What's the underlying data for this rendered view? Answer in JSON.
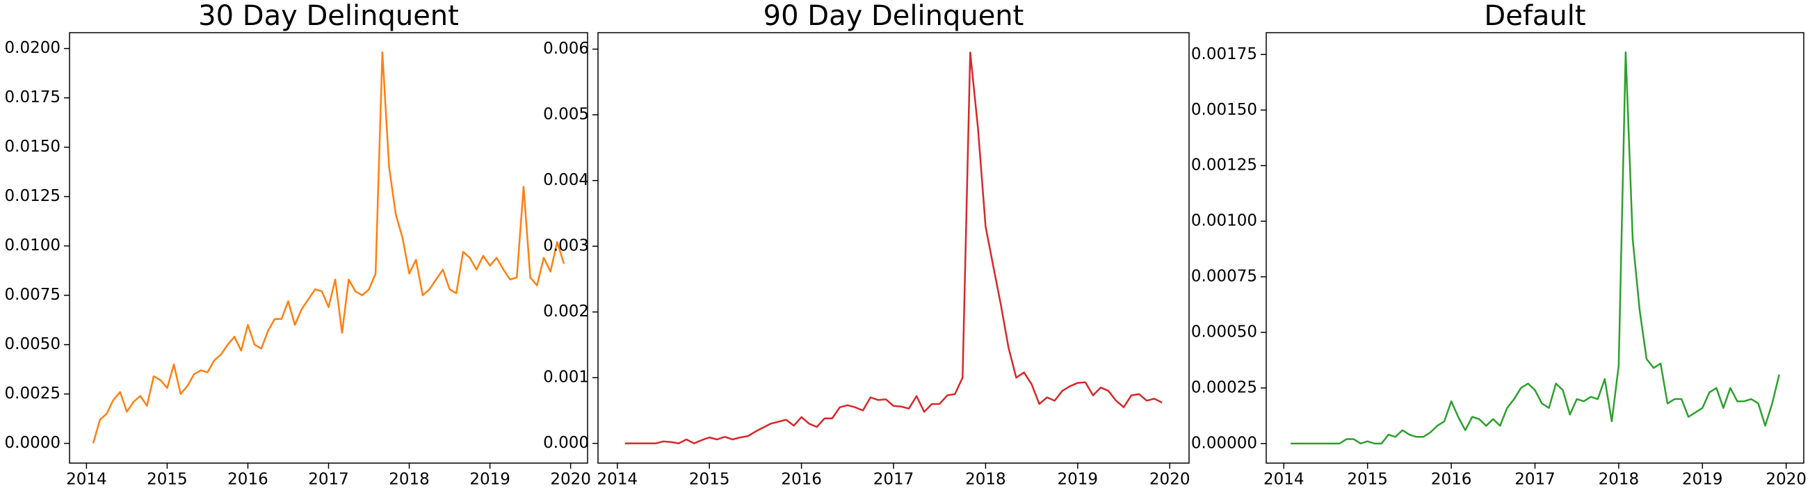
{
  "chart_data": [
    {
      "type": "line",
      "title": "30 Day Delinquent",
      "color": "#ff7f0e",
      "x": [
        2014.083,
        2014.167,
        2014.25,
        2014.333,
        2014.417,
        2014.5,
        2014.583,
        2014.667,
        2014.75,
        2014.833,
        2014.917,
        2015.0,
        2015.083,
        2015.167,
        2015.25,
        2015.333,
        2015.417,
        2015.5,
        2015.583,
        2015.667,
        2015.75,
        2015.833,
        2015.917,
        2016.0,
        2016.083,
        2016.167,
        2016.25,
        2016.333,
        2016.417,
        2016.5,
        2016.583,
        2016.667,
        2016.75,
        2016.833,
        2016.917,
        2017.0,
        2017.083,
        2017.167,
        2017.25,
        2017.333,
        2017.417,
        2017.5,
        2017.583,
        2017.667,
        2017.75,
        2017.833,
        2017.917,
        2018.0,
        2018.083,
        2018.167,
        2018.25,
        2018.333,
        2018.417,
        2018.5,
        2018.583,
        2018.667,
        2018.75,
        2018.833,
        2018.917,
        2019.0,
        2019.083,
        2019.167,
        2019.25,
        2019.333,
        2019.417,
        2019.5,
        2019.583,
        2019.667,
        2019.75,
        2019.833,
        2019.917
      ],
      "values": [
        0,
        0.0012,
        0.0015,
        0.0022,
        0.0026,
        0.0016,
        0.0021,
        0.0024,
        0.0019,
        0.0034,
        0.0032,
        0.0028,
        0.004,
        0.0025,
        0.0029,
        0.0035,
        0.0037,
        0.0036,
        0.0042,
        0.0045,
        0.005,
        0.0054,
        0.0047,
        0.006,
        0.005,
        0.0048,
        0.0057,
        0.0063,
        0.0063,
        0.0072,
        0.006,
        0.0068,
        0.0073,
        0.0078,
        0.0077,
        0.0069,
        0.0083,
        0.0056,
        0.0083,
        0.0077,
        0.0075,
        0.0078,
        0.0086,
        0.0198,
        0.014,
        0.0116,
        0.0104,
        0.0086,
        0.0093,
        0.0075,
        0.0078,
        0.0083,
        0.0088,
        0.0078,
        0.0076,
        0.0097,
        0.0094,
        0.0088,
        0.0095,
        0.009,
        0.0094,
        0.0088,
        0.0083,
        0.0084,
        0.013,
        0.0084,
        0.008,
        0.0094,
        0.0087,
        0.0102,
        0.0091
      ],
      "xlim": [
        2013.79,
        2020.21
      ],
      "xticks": [
        2014,
        2015,
        2016,
        2017,
        2018,
        2019,
        2020
      ],
      "ylim": [
        -0.001,
        0.0208
      ],
      "yticks": [
        {
          "value": 0,
          "label": "0.0000"
        },
        {
          "value": 0.0025,
          "label": "0.0025"
        },
        {
          "value": 0.005,
          "label": "0.0050"
        },
        {
          "value": 0.0075,
          "label": "0.0075"
        },
        {
          "value": 0.01,
          "label": "0.0100"
        },
        {
          "value": 0.0125,
          "label": "0.0125"
        },
        {
          "value": 0.015,
          "label": "0.0150"
        },
        {
          "value": 0.0175,
          "label": "0.0175"
        },
        {
          "value": 0.02,
          "label": "0.0200"
        }
      ]
    },
    {
      "type": "line",
      "title": "90 Day Delinquent",
      "color": "#d62728",
      "x": [
        2014.083,
        2014.167,
        2014.25,
        2014.333,
        2014.417,
        2014.5,
        2014.583,
        2014.667,
        2014.75,
        2014.833,
        2014.917,
        2015.0,
        2015.083,
        2015.167,
        2015.25,
        2015.333,
        2015.417,
        2015.5,
        2015.583,
        2015.667,
        2015.75,
        2015.833,
        2015.917,
        2016.0,
        2016.083,
        2016.167,
        2016.25,
        2016.333,
        2016.417,
        2016.5,
        2016.583,
        2016.667,
        2016.75,
        2016.833,
        2016.917,
        2017.0,
        2017.083,
        2017.167,
        2017.25,
        2017.333,
        2017.417,
        2017.5,
        2017.583,
        2017.667,
        2017.75,
        2017.833,
        2017.917,
        2018.0,
        2018.083,
        2018.167,
        2018.25,
        2018.333,
        2018.417,
        2018.5,
        2018.583,
        2018.667,
        2018.75,
        2018.833,
        2018.917,
        2019.0,
        2019.083,
        2019.167,
        2019.25,
        2019.333,
        2019.417,
        2019.5,
        2019.583,
        2019.667,
        2019.75,
        2019.833,
        2019.917
      ],
      "values": [
        0,
        0,
        0,
        0,
        0,
        3e-05,
        2e-05,
        0,
        6e-05,
        0,
        5e-05,
        9e-05,
        6e-05,
        0.0001,
        6e-05,
        9e-05,
        0.00011,
        0.00018,
        0.00024,
        0.0003,
        0.00033,
        0.00036,
        0.00027,
        0.0004,
        0.0003,
        0.00025,
        0.00038,
        0.00038,
        0.00055,
        0.00058,
        0.00055,
        0.0005,
        0.0007,
        0.00066,
        0.00067,
        0.00057,
        0.00056,
        0.00053,
        0.00072,
        0.00048,
        0.0006,
        0.0006,
        0.00073,
        0.00075,
        0.001,
        0.00595,
        0.0048,
        0.0033,
        0.0027,
        0.0021,
        0.00145,
        0.001,
        0.00108,
        0.0009,
        0.0006,
        0.0007,
        0.00065,
        0.0008,
        0.00087,
        0.00092,
        0.00093,
        0.00073,
        0.00085,
        0.0008,
        0.00065,
        0.00055,
        0.00073,
        0.00075,
        0.00065,
        0.00068,
        0.00062
      ],
      "xlim": [
        2013.79,
        2020.21
      ],
      "xticks": [
        2014,
        2015,
        2016,
        2017,
        2018,
        2019,
        2020
      ],
      "ylim": [
        -0.0003,
        0.00625
      ],
      "yticks": [
        {
          "value": 0,
          "label": "0.000"
        },
        {
          "value": 0.001,
          "label": "0.001"
        },
        {
          "value": 0.002,
          "label": "0.002"
        },
        {
          "value": 0.003,
          "label": "0.003"
        },
        {
          "value": 0.004,
          "label": "0.004"
        },
        {
          "value": 0.005,
          "label": "0.005"
        },
        {
          "value": 0.006,
          "label": "0.006"
        }
      ]
    },
    {
      "type": "line",
      "title": "Default",
      "color": "#2ca02c",
      "x": [
        2014.083,
        2014.167,
        2014.25,
        2014.333,
        2014.417,
        2014.5,
        2014.583,
        2014.667,
        2014.75,
        2014.833,
        2014.917,
        2015.0,
        2015.083,
        2015.167,
        2015.25,
        2015.333,
        2015.417,
        2015.5,
        2015.583,
        2015.667,
        2015.75,
        2015.833,
        2015.917,
        2016.0,
        2016.083,
        2016.167,
        2016.25,
        2016.333,
        2016.417,
        2016.5,
        2016.583,
        2016.667,
        2016.75,
        2016.833,
        2016.917,
        2017.0,
        2017.083,
        2017.167,
        2017.25,
        2017.333,
        2017.417,
        2017.5,
        2017.583,
        2017.667,
        2017.75,
        2017.833,
        2017.917,
        2018.0,
        2018.083,
        2018.167,
        2018.25,
        2018.333,
        2018.417,
        2018.5,
        2018.583,
        2018.667,
        2018.75,
        2018.833,
        2018.917,
        2019.0,
        2019.083,
        2019.167,
        2019.25,
        2019.333,
        2019.417,
        2019.5,
        2019.583,
        2019.667,
        2019.75,
        2019.833,
        2019.917
      ],
      "values": [
        0,
        0,
        0,
        0,
        0,
        0,
        0,
        0,
        2e-05,
        2e-05,
        0,
        1e-05,
        0,
        0,
        4e-05,
        3e-05,
        6e-05,
        4e-05,
        3e-05,
        3e-05,
        5e-05,
        8e-05,
        0.0001,
        0.00019,
        0.00012,
        6e-05,
        0.00012,
        0.00011,
        8e-05,
        0.00011,
        8e-05,
        0.00016,
        0.0002,
        0.00025,
        0.00027,
        0.00024,
        0.00018,
        0.00016,
        0.00027,
        0.00024,
        0.00013,
        0.0002,
        0.00019,
        0.00021,
        0.0002,
        0.00029,
        0.0001,
        0.00035,
        0.00176,
        0.00092,
        0.0006,
        0.00038,
        0.00034,
        0.00036,
        0.00018,
        0.0002,
        0.0002,
        0.00012,
        0.00014,
        0.00016,
        0.00023,
        0.00025,
        0.00016,
        0.00025,
        0.00019,
        0.00019,
        0.0002,
        0.00018,
        8e-05,
        0.00018,
        0.00031
      ],
      "xlim": [
        2013.79,
        2020.21
      ],
      "xticks": [
        2014,
        2015,
        2016,
        2017,
        2018,
        2019,
        2020
      ],
      "ylim": [
        -8.8e-05,
        0.001848
      ],
      "yticks": [
        {
          "value": 0,
          "label": "0.00000"
        },
        {
          "value": 0.00025,
          "label": "0.00025"
        },
        {
          "value": 0.0005,
          "label": "0.00050"
        },
        {
          "value": 0.00075,
          "label": "0.00075"
        },
        {
          "value": 0.001,
          "label": "0.00100"
        },
        {
          "value": 0.00125,
          "label": "0.00125"
        },
        {
          "value": 0.0015,
          "label": "0.00150"
        },
        {
          "value": 0.00175,
          "label": "0.00175"
        }
      ]
    }
  ]
}
